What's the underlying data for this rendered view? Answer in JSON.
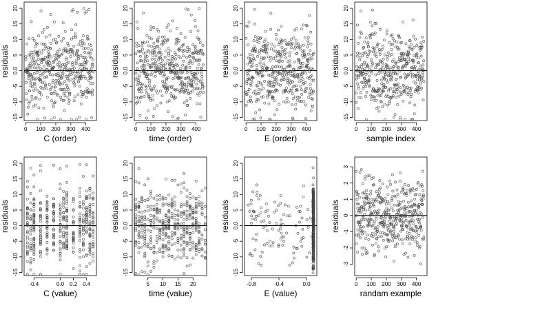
{
  "figure": {
    "panels": [
      {
        "id": "c-order",
        "xlabel": "C (order)",
        "ylabel": "residuals",
        "xlim": [
          -10,
          470
        ],
        "ylim": [
          -16,
          22
        ],
        "xticks": [
          0,
          100,
          200,
          300,
          400
        ],
        "xtick_labels": [
          "0",
          "100",
          "200",
          "300",
          "400"
        ],
        "yticks": [
          -15,
          -10,
          -5,
          0,
          5,
          10,
          15,
          20
        ],
        "ytick_labels": [
          "-15",
          "-10",
          "-5",
          "0.0",
          "5",
          "10",
          "15",
          "20"
        ],
        "ref_line": 0,
        "distribution": "uniform_index"
      },
      {
        "id": "time-order",
        "xlabel": "time (order)",
        "ylabel": "residuals",
        "xlim": [
          -10,
          470
        ],
        "ylim": [
          -16,
          22
        ],
        "xticks": [
          0,
          100,
          200,
          300,
          400
        ],
        "xtick_labels": [
          "0",
          "100",
          "200",
          "300",
          "400"
        ],
        "yticks": [
          -15,
          -10,
          -5,
          0,
          5,
          10,
          15,
          20
        ],
        "ytick_labels": [
          "-15",
          "-10",
          "-5",
          "0.0",
          "5",
          "10",
          "15",
          "20"
        ],
        "ref_line": 0,
        "distribution": "uniform_index"
      },
      {
        "id": "e-order",
        "xlabel": "E (order)",
        "ylabel": "residuals",
        "xlim": [
          -10,
          470
        ],
        "ylim": [
          -16,
          22
        ],
        "xticks": [
          0,
          100,
          200,
          300,
          400
        ],
        "xtick_labels": [
          "0",
          "100",
          "200",
          "300",
          "400"
        ],
        "yticks": [
          -15,
          -10,
          -5,
          0,
          5,
          10,
          15,
          20
        ],
        "ytick_labels": [
          "-15",
          "-10",
          "-5",
          "0.0",
          "5",
          "10",
          "15",
          "20"
        ],
        "ref_line": 0,
        "distribution": "uniform_index"
      },
      {
        "id": "sample-index",
        "xlabel": "sample index",
        "ylabel": "residuals",
        "xlim": [
          -10,
          470
        ],
        "ylim": [
          -16,
          22
        ],
        "xticks": [
          0,
          100,
          200,
          300,
          400
        ],
        "xtick_labels": [
          "0",
          "100",
          "200",
          "300",
          "400"
        ],
        "yticks": [
          -15,
          -10,
          -5,
          0,
          5,
          10,
          15,
          20
        ],
        "ytick_labels": [
          "-15",
          "-10",
          "-5",
          "0.0",
          "5",
          "10",
          "15",
          "20"
        ],
        "ref_line": 0,
        "distribution": "uniform_index"
      },
      {
        "id": "c-value",
        "xlabel": "C (value)",
        "ylabel": "residuals",
        "xlim": [
          -0.55,
          0.55
        ],
        "ylim": [
          -16,
          22
        ],
        "xticks": [
          -0.4,
          0.0,
          0.2,
          0.4
        ],
        "xtick_labels": [
          "-0.4",
          "0.0",
          "0.2",
          "0.4"
        ],
        "yticks": [
          -15,
          -10,
          -5,
          0,
          5,
          10,
          15,
          20
        ],
        "ytick_labels": [
          "-15",
          "-10",
          "-5",
          "0.0",
          "5",
          "10",
          "15",
          "20"
        ],
        "ref_line": 0,
        "distribution": "discrete_columns",
        "columns": [
          -0.5,
          -0.45,
          -0.4,
          -0.3,
          -0.2,
          -0.1,
          0.0,
          0.05,
          0.1,
          0.2,
          0.3,
          0.35,
          0.4,
          0.45,
          0.5
        ]
      },
      {
        "id": "time-value",
        "xlabel": "time (value)",
        "ylabel": "residuals",
        "xlim": [
          0.5,
          24.5
        ],
        "ylim": [
          -16,
          22
        ],
        "xticks": [
          5,
          10,
          15,
          20
        ],
        "xtick_labels": [
          "5",
          "10",
          "15",
          "20"
        ],
        "yticks": [
          -15,
          -10,
          -5,
          0,
          5,
          10,
          15,
          20
        ],
        "ytick_labels": [
          "-15",
          "-10",
          "-5",
          "0.0",
          "5",
          "10",
          "15",
          "20"
        ],
        "ref_line": 0,
        "distribution": "discrete_columns",
        "columns": [
          1,
          2,
          3,
          4,
          5,
          6,
          7,
          8,
          9,
          10,
          11,
          12,
          13,
          14,
          15,
          16,
          17,
          18,
          19,
          20,
          21,
          22,
          23,
          24
        ]
      },
      {
        "id": "e-value",
        "xlabel": "E (value)",
        "ylabel": "residuals",
        "xlim": [
          -0.9,
          0.15
        ],
        "ylim": [
          -16,
          22
        ],
        "xticks": [
          -0.8,
          -0.4,
          0.0
        ],
        "xtick_labels": [
          "-0.8",
          "-0.4",
          "0.0"
        ],
        "yticks": [
          -15,
          -10,
          -5,
          0,
          5,
          10,
          15,
          20
        ],
        "ytick_labels": [
          "-15",
          "-10",
          "-5",
          "0.0",
          "5",
          "10",
          "15",
          "20"
        ],
        "ref_line": 0,
        "distribution": "clustered_right"
      },
      {
        "id": "randam-example",
        "xlabel": "randam example",
        "ylabel": "residuals",
        "xlim": [
          -10,
          470
        ],
        "ylim": [
          -3.7,
          3.6
        ],
        "xticks": [
          0,
          100,
          200,
          300,
          400
        ],
        "xtick_labels": [
          "0",
          "100",
          "200",
          "300",
          "400"
        ],
        "yticks": [
          -3,
          -2,
          -1,
          0,
          1,
          2,
          3
        ],
        "ytick_labels": [
          "-3",
          "-2",
          "-1",
          "0",
          "1",
          "2",
          "3"
        ],
        "ref_line": 0,
        "distribution": "uniform_index_gauss"
      }
    ]
  },
  "chart_data": [
    {
      "type": "scatter",
      "xlabel": "C (order)",
      "ylabel": "residuals",
      "xlim": [
        -10,
        470
      ],
      "ylim": [
        -16,
        22
      ],
      "n_points": 450,
      "y_range_observed": [
        -15,
        21
      ],
      "reference_line_y": 0,
      "grid": false
    },
    {
      "type": "scatter",
      "xlabel": "time (order)",
      "ylabel": "residuals",
      "xlim": [
        -10,
        470
      ],
      "ylim": [
        -16,
        22
      ],
      "n_points": 450,
      "y_range_observed": [
        -15,
        21
      ],
      "reference_line_y": 0,
      "grid": false
    },
    {
      "type": "scatter",
      "xlabel": "E (order)",
      "ylabel": "residuals",
      "xlim": [
        -10,
        470
      ],
      "ylim": [
        -16,
        22
      ],
      "n_points": 450,
      "y_range_observed": [
        -15,
        21
      ],
      "reference_line_y": 0,
      "grid": false
    },
    {
      "type": "scatter",
      "xlabel": "sample index",
      "ylabel": "residuals",
      "xlim": [
        -10,
        470
      ],
      "ylim": [
        -16,
        22
      ],
      "n_points": 450,
      "y_range_observed": [
        -15,
        21
      ],
      "reference_line_y": 0,
      "grid": false
    },
    {
      "type": "scatter",
      "xlabel": "C (value)",
      "ylabel": "residuals",
      "xlim": [
        -0.55,
        0.55
      ],
      "ylim": [
        -16,
        22
      ],
      "n_points": 450,
      "y_range_observed": [
        -15,
        21
      ],
      "reference_line_y": 0,
      "grid": false
    },
    {
      "type": "scatter",
      "xlabel": "time (value)",
      "ylabel": "residuals",
      "xlim": [
        0.5,
        24.5
      ],
      "ylim": [
        -16,
        22
      ],
      "n_points": 450,
      "y_range_observed": [
        -15,
        21
      ],
      "reference_line_y": 0,
      "grid": false
    },
    {
      "type": "scatter",
      "xlabel": "E (value)",
      "ylabel": "residuals",
      "xlim": [
        -0.9,
        0.15
      ],
      "ylim": [
        -16,
        22
      ],
      "n_points": 450,
      "y_range_observed": [
        -15,
        21
      ],
      "reference_line_y": 0,
      "grid": false
    },
    {
      "type": "scatter",
      "xlabel": "randam example",
      "ylabel": "residuals",
      "xlim": [
        -10,
        470
      ],
      "ylim": [
        -3.7,
        3.6
      ],
      "n_points": 450,
      "y_range_observed": [
        -3.3,
        3.3
      ],
      "reference_line_y": 0,
      "grid": false
    }
  ]
}
